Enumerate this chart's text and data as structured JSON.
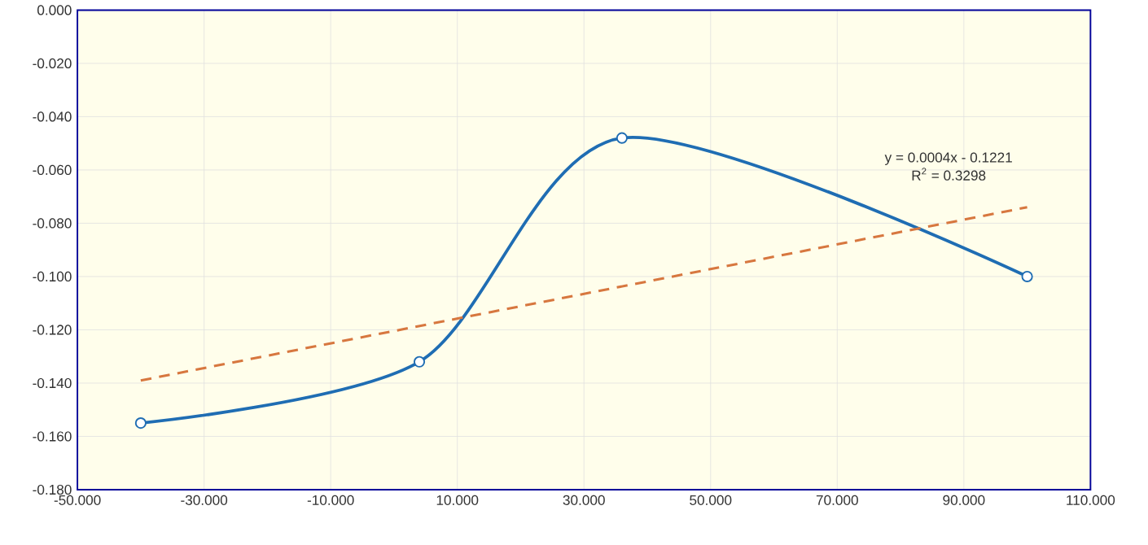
{
  "chart_data": {
    "type": "line",
    "x": [
      -40,
      4,
      36,
      100
    ],
    "series": [
      {
        "color": "#1f6db3",
        "values": [
          -0.155,
          -0.132,
          -0.048,
          -0.1
        ],
        "marker": "circle",
        "line_style": "solid"
      },
      {
        "type": "line",
        "x": [
          -40,
          100
        ],
        "color": "#d7773f",
        "values": [
          -0.139,
          -0.074
        ],
        "marker": "none",
        "line_style": "dashed"
      }
    ],
    "xlim": [
      -50,
      110
    ],
    "xticks": [
      {
        "value": -50,
        "label": "-50.000"
      },
      {
        "value": -30,
        "label": "-30.000"
      },
      {
        "value": -10,
        "label": "-10.000"
      },
      {
        "value": 10,
        "label": "10.000"
      },
      {
        "value": 30,
        "label": "30.000"
      },
      {
        "value": 50,
        "label": "50.000"
      },
      {
        "value": 70,
        "label": "70.000"
      },
      {
        "value": 90,
        "label": "90.000"
      },
      {
        "value": 110,
        "label": "110.000"
      }
    ],
    "ylim": [
      -0.18,
      0
    ],
    "yticks": [
      {
        "value": 0,
        "label": "0.000"
      },
      {
        "value": -0.02,
        "label": "-0.020"
      },
      {
        "value": -0.04,
        "label": "-0.040"
      },
      {
        "value": -0.06,
        "label": "-0.060"
      },
      {
        "value": -0.08,
        "label": "-0.080"
      },
      {
        "value": -0.1,
        "label": "-0.100"
      },
      {
        "value": -0.12,
        "label": "-0.120"
      },
      {
        "value": -0.14,
        "label": "-0.140"
      },
      {
        "value": -0.16,
        "label": "-0.160"
      },
      {
        "value": -0.18,
        "label": "-0.180"
      }
    ],
    "grid": true,
    "annotations": [
      "y = 0.0004x - 0.1221",
      "R$^{2}$ = 0.3298"
    ]
  }
}
